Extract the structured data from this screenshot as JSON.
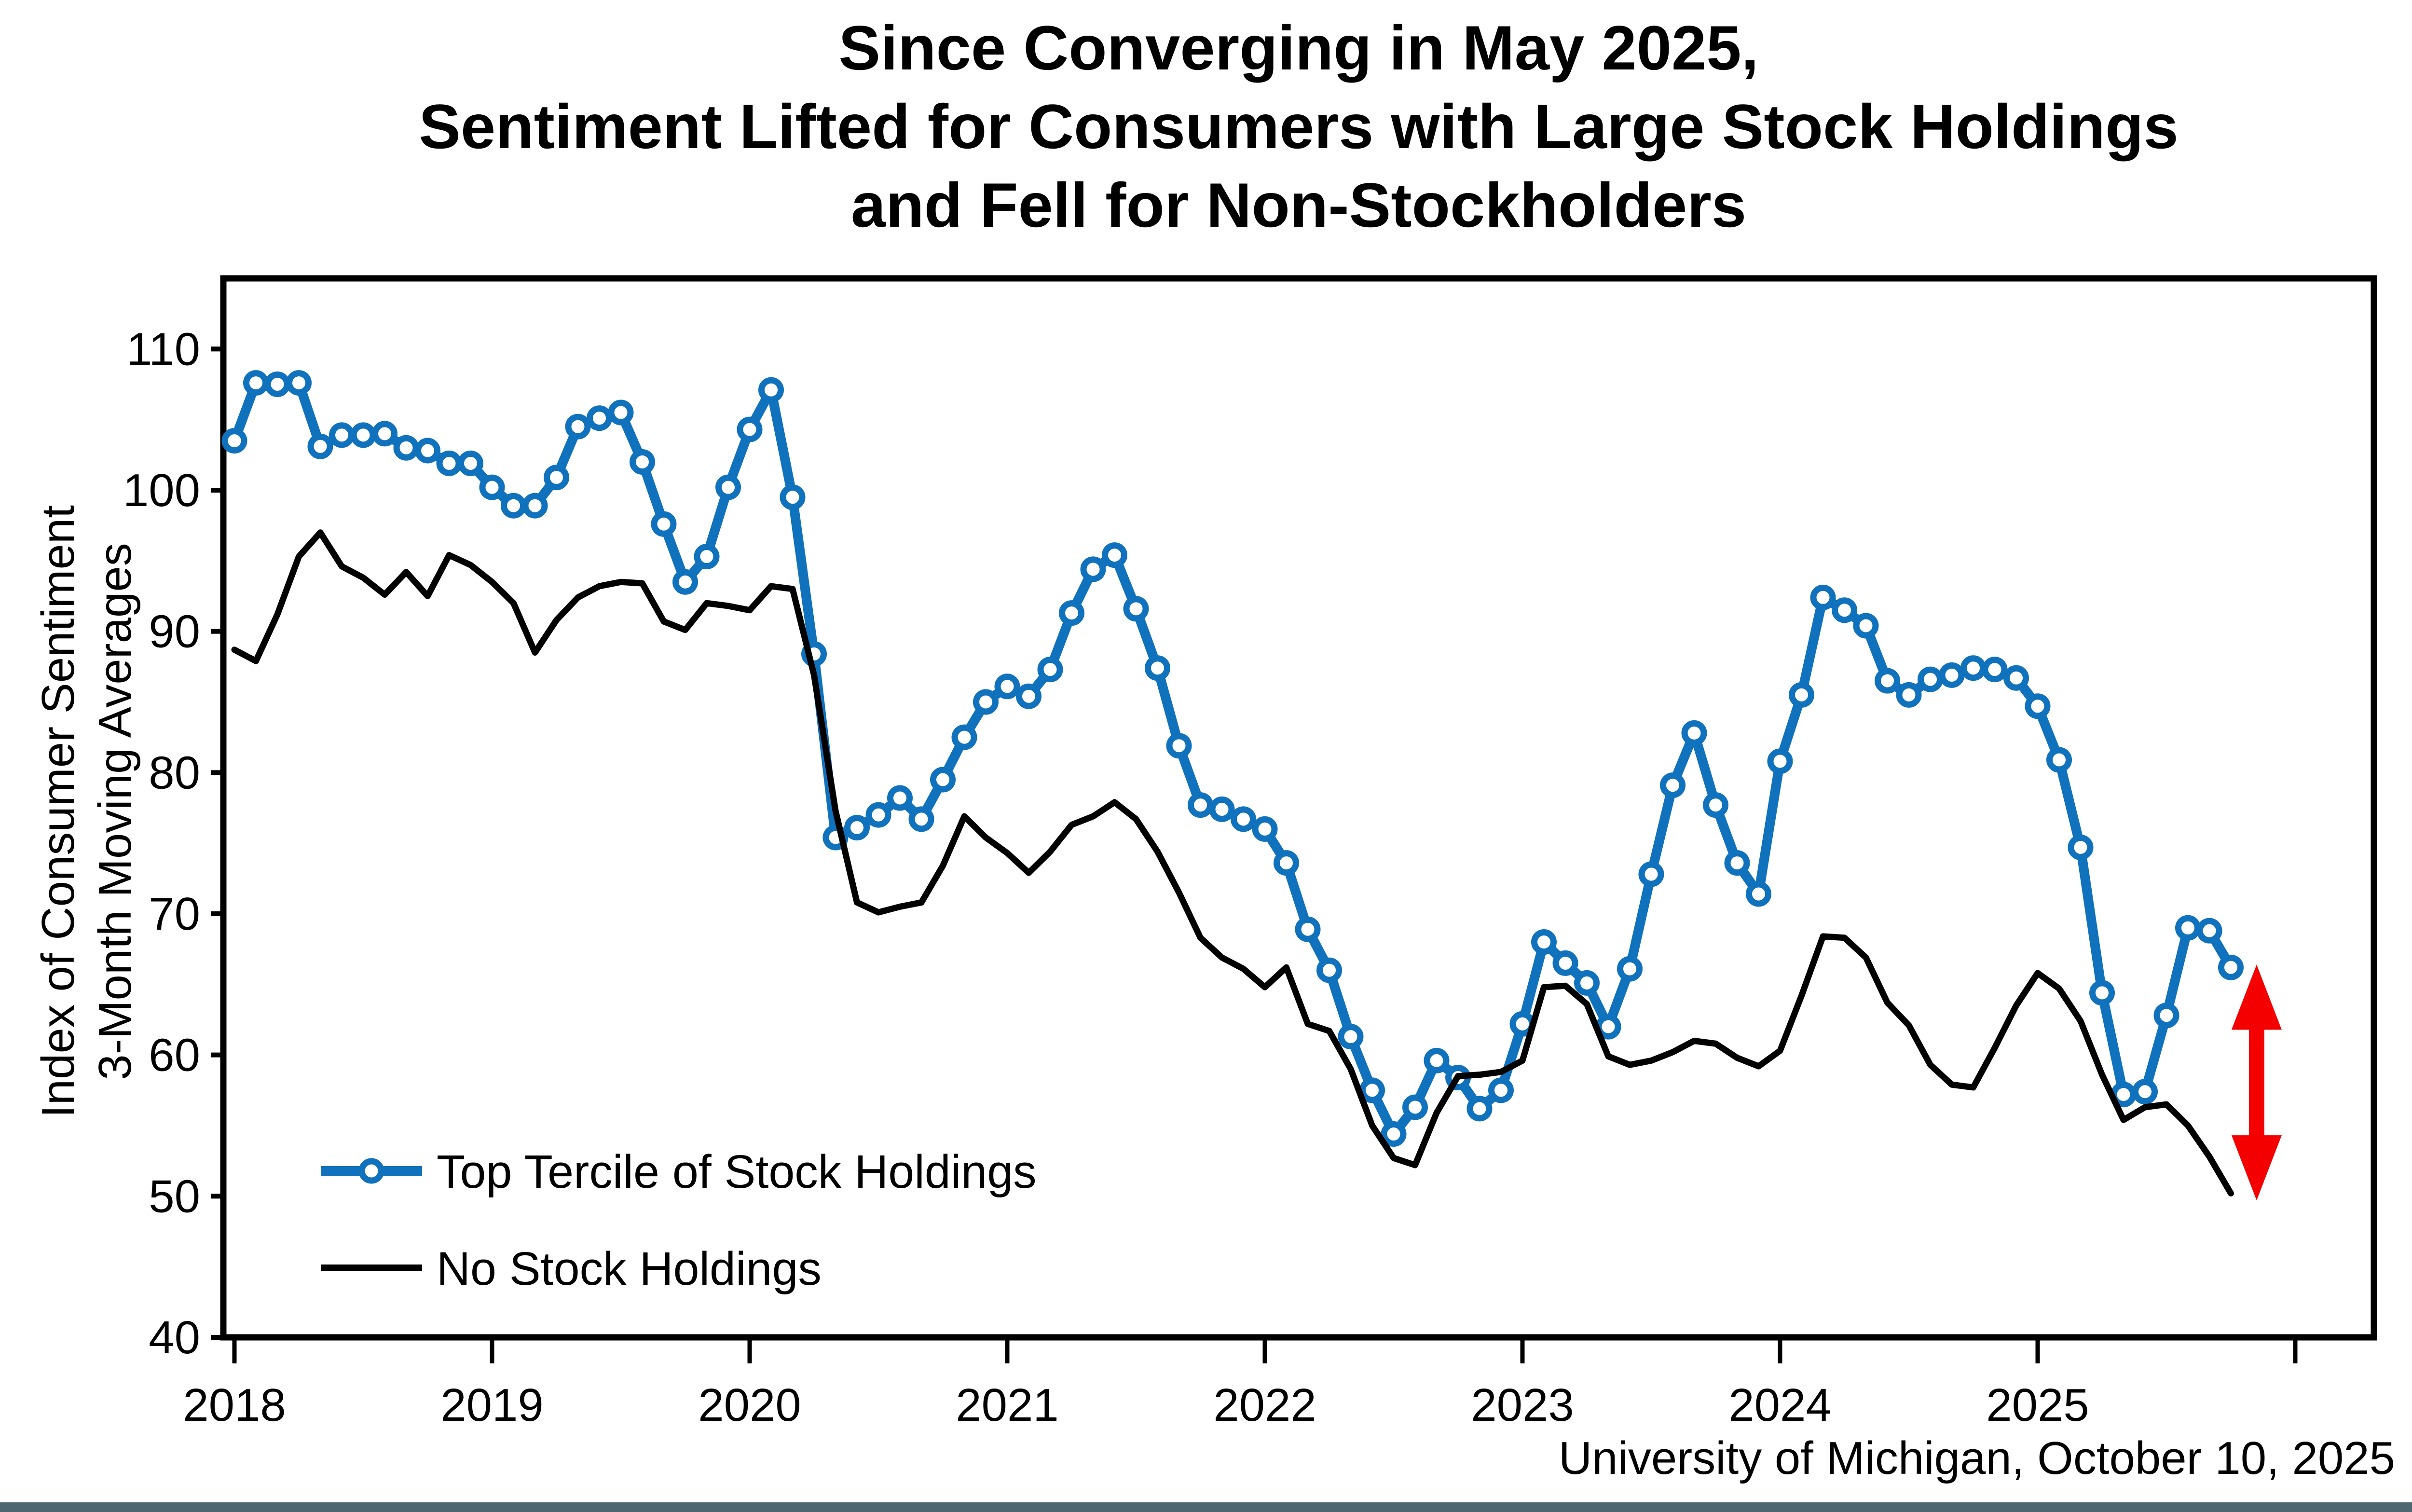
{
  "title": {
    "line1": "Since Converging in May 2025,",
    "line2": "Sentiment Lifted for Consumers with Large Stock Holdings",
    "line3": "and Fell for Non-Stockholders"
  },
  "y_axis": {
    "title_line1": "Index of Consumer Sentiment",
    "title_line2": "3-Month Moving Averages",
    "tick_labels": [
      "110",
      "100",
      "90",
      "80",
      "70",
      "60",
      "50",
      "40"
    ]
  },
  "x_axis": {
    "tick_labels": [
      "2018",
      "2019",
      "2020",
      "2021",
      "2022",
      "2023",
      "2024",
      "2025"
    ]
  },
  "legend": [
    {
      "label": "Top Tercile of Stock Holdings",
      "color": "#1072bc",
      "marker": "open-circle"
    },
    {
      "label": "No Stock Holdings",
      "color": "#000000",
      "marker": "none"
    }
  ],
  "footer": {
    "attribution": "University of Michigan, October 10, 2025"
  },
  "colors": {
    "blue": "#1072bc",
    "black": "#000000",
    "red": "#f40000",
    "footer_bar": "#4e6670",
    "background": "#ffffff"
  },
  "chart_data": {
    "type": "line",
    "title": "Since Converging in May 2025, Sentiment Lifted for Consumers with Large Stock Holdings and Fell for Non-Stockholders",
    "ylabel": "Index of Consumer Sentiment 3-Month Moving Averages",
    "xlabel": "",
    "grid": false,
    "legend_position": "lower-left-inside",
    "start_month": "2018-01",
    "frequency": "monthly",
    "ylim": [
      40,
      115
    ],
    "yticks": [
      110,
      100,
      90,
      80,
      70,
      60,
      50,
      40
    ],
    "xticks_years": [
      2018,
      2019,
      2020,
      2021,
      2022,
      2023,
      2024,
      2025
    ],
    "series": [
      {
        "name": "Top Tercile of Stock Holdings",
        "color": "#1072bc",
        "marker": "open-circle",
        "values": [
          103.5,
          107.6,
          107.5,
          107.6,
          103.1,
          103.9,
          103.9,
          104.0,
          103.0,
          102.8,
          101.9,
          101.9,
          100.2,
          98.9,
          98.9,
          100.9,
          104.5,
          105.1,
          105.5,
          102.0,
          97.6,
          93.5,
          95.3,
          100.2,
          104.3,
          107.1,
          99.5,
          88.4,
          75.4,
          76.1,
          77.0,
          78.2,
          76.7,
          79.5,
          82.5,
          85.0,
          86.1,
          85.4,
          87.3,
          91.3,
          94.4,
          95.4,
          91.6,
          87.4,
          81.9,
          77.7,
          77.4,
          76.7,
          76.0,
          73.6,
          68.9,
          66.0,
          61.3,
          57.5,
          54.4,
          56.3,
          59.6,
          58.4,
          56.2,
          57.5,
          62.2,
          68.0,
          66.5,
          65.1,
          62.0,
          66.1,
          72.8,
          79.1,
          82.8,
          77.7,
          73.6,
          71.4,
          80.8,
          85.5,
          92.4,
          91.5,
          90.4,
          86.5,
          85.5,
          86.6,
          86.9,
          87.4,
          87.3,
          86.7,
          84.7,
          80.9,
          74.7,
          64.4,
          57.2,
          57.4,
          62.8,
          69.0,
          68.8,
          66.2
        ]
      },
      {
        "name": "No Stock Holdings",
        "color": "#000000",
        "marker": "none",
        "values": [
          88.7,
          87.9,
          91.2,
          95.3,
          97.0,
          94.6,
          93.8,
          92.6,
          94.2,
          92.5,
          95.4,
          94.7,
          93.5,
          92.0,
          88.5,
          90.8,
          92.4,
          93.2,
          93.5,
          93.4,
          90.7,
          90.1,
          92.0,
          91.8,
          91.5,
          93.2,
          93.0,
          86.9,
          77.3,
          70.8,
          70.1,
          70.5,
          70.8,
          73.4,
          76.9,
          75.4,
          74.3,
          72.9,
          74.4,
          76.3,
          76.9,
          77.9,
          76.7,
          74.4,
          71.5,
          68.3,
          66.9,
          66.1,
          64.8,
          66.2,
          62.2,
          61.7,
          59.0,
          55.0,
          52.7,
          52.2,
          55.9,
          58.5,
          58.6,
          58.8,
          59.6,
          64.8,
          64.9,
          63.6,
          59.9,
          59.3,
          59.6,
          60.2,
          61.0,
          60.8,
          59.8,
          59.2,
          60.3,
          64.2,
          68.4,
          68.3,
          66.9,
          63.7,
          62.1,
          59.3,
          57.9,
          57.7,
          60.5,
          63.5,
          65.8,
          64.7,
          62.4,
          58.6,
          55.4,
          56.3,
          56.5,
          55.0,
          52.8,
          50.2
        ]
      }
    ],
    "annotation_arrow": {
      "type": "double-headed-vertical",
      "color": "#f40000",
      "month_offset": 94.2,
      "v_top": 66.4,
      "v_bottom": 49.7
    }
  }
}
